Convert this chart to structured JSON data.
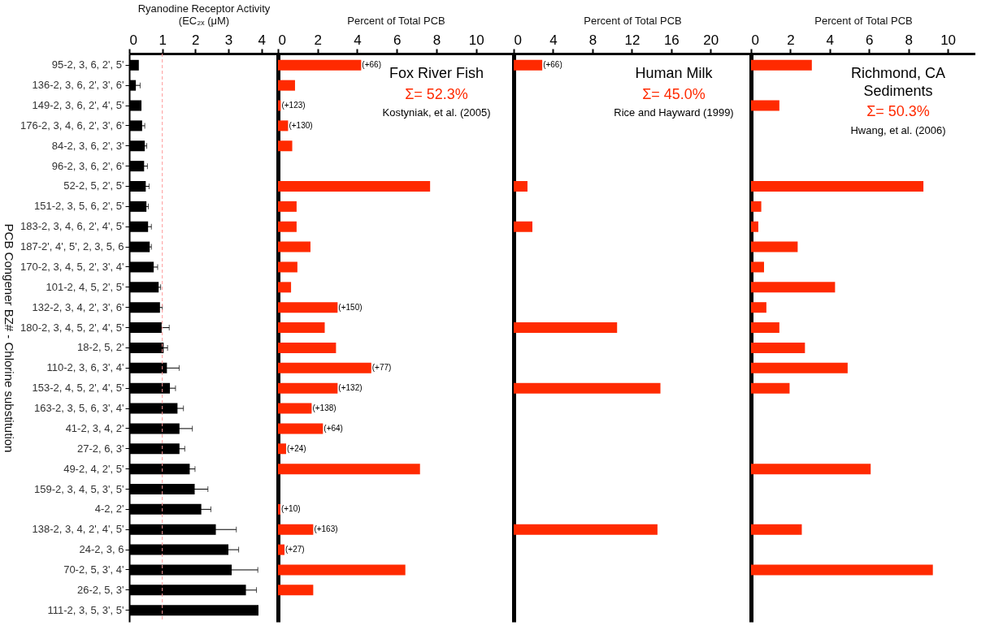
{
  "chart_data": [
    {
      "type": "bar",
      "orientation": "horizontal",
      "xlabel": "Ryanodine Receptor Activity\n(EC₂ₓ  (μM)",
      "ylabel": "PCB Congener  BZ# - Chlorine substitution",
      "categories": [
        "95-2, 3, 6, 2', 5'",
        "136-2, 3, 6, 2', 3', 6'",
        "149-2, 3, 6, 2', 4', 5'",
        "176-2, 3, 4, 6, 2', 3', 6'",
        "84-2, 3, 6, 2', 3'",
        "96-2, 3, 6, 2', 6'",
        "52-2, 5, 2', 5'",
        "151-2, 3, 5, 6, 2', 5'",
        "183-2, 3, 4, 6, 2', 4', 5'",
        "187-2', 4', 5', 2, 3, 5, 6",
        "170-2, 3, 4, 5, 2', 3', 4'",
        "101-2, 4, 5, 2', 5'",
        "132-2, 3, 4, 2', 3', 6'",
        "180-2, 3, 4, 5, 2', 4', 5'",
        "18-2, 5, 2'",
        "110-2, 3, 6, 3', 4'",
        "153-2, 4, 5, 2', 4', 5'",
        "163-2, 3, 5, 6, 3', 4'",
        "41-2, 3, 4, 2'",
        "27-2, 6, 3'",
        "49-2, 4, 2', 5'",
        "159-2, 3, 4, 5, 3', 5'",
        "4-2, 2'",
        "138-2, 3, 4, 2', 4', 5'",
        "24-2, 3, 6",
        "70-2, 5, 3', 4'",
        "26-2, 5, 3'",
        "111-2, 3, 5, 3', 5'"
      ],
      "values": [
        0.29,
        0.2,
        0.37,
        0.39,
        0.47,
        0.45,
        0.5,
        0.52,
        0.57,
        0.62,
        0.74,
        0.89,
        0.93,
        0.98,
        1.04,
        1.14,
        1.23,
        1.46,
        1.52,
        1.52,
        1.83,
        1.98,
        2.18,
        2.62,
        3.0,
        3.1,
        3.53,
        3.91
      ],
      "errors": [
        null,
        0.13,
        null,
        0.08,
        0.06,
        0.1,
        0.1,
        0.06,
        0.1,
        0.05,
        0.12,
        0.06,
        0.07,
        0.23,
        0.12,
        0.37,
        0.17,
        0.18,
        0.39,
        0.16,
        0.16,
        0.4,
        0.29,
        0.62,
        0.31,
        0.79,
        0.32,
        null
      ],
      "color": "#000000",
      "xlim": [
        0,
        4.5
      ],
      "xticks": [
        0,
        1,
        2,
        3,
        4
      ],
      "ref_lines": [
        {
          "axis": "x",
          "value": 1,
          "color": "#ff9999",
          "line_style": "dashed"
        }
      ]
    },
    {
      "type": "bar",
      "orientation": "horizontal",
      "xlabel": "Percent of Total PCB",
      "tick_labels": "x",
      "categories": [
        "95-2, 3, 6, 2', 5'",
        "136-2, 3, 6, 2', 3', 6'",
        "149-2, 3, 6, 2', 4', 5'",
        "176-2, 3, 4, 6, 2', 3', 6'",
        "84-2, 3, 6, 2', 3'",
        "96-2, 3, 6, 2', 6'",
        "52-2, 5, 2', 5'",
        "151-2, 3, 5, 6, 2', 5'",
        "183-2, 3, 4, 6, 2', 4', 5'",
        "187-2', 4', 5', 2, 3, 5, 6",
        "170-2, 3, 4, 5, 2', 3', 4'",
        "101-2, 4, 5, 2', 5'",
        "132-2, 3, 4, 2', 3', 6'",
        "180-2, 3, 4, 5, 2', 4', 5'",
        "18-2, 5, 2'",
        "110-2, 3, 6, 3', 4'",
        "153-2, 4, 5, 2', 4', 5'",
        "163-2, 3, 5, 6, 3', 4'",
        "41-2, 3, 4, 2'",
        "27-2, 6, 3'",
        "49-2, 4, 2', 5'",
        "159-2, 3, 4, 5, 3', 5'",
        "4-2, 2'",
        "138-2, 3, 4, 2', 4', 5'",
        "24-2, 3, 6",
        "70-2, 5, 3', 4'",
        "26-2, 5, 3'",
        "111-2, 3, 5, 3', 5'"
      ],
      "values": [
        4.2,
        0.86,
        0.14,
        0.51,
        0.72,
        null,
        7.68,
        0.94,
        0.94,
        1.64,
        0.98,
        0.66,
        3.01,
        2.36,
        2.93,
        4.71,
        3.01,
        1.7,
        2.27,
        0.41,
        7.17,
        null,
        0.12,
        1.78,
        0.33,
        6.43,
        1.78,
        null
      ],
      "color": "#ff2a00",
      "xlim": [
        0,
        11.9
      ],
      "xticks": [
        0,
        2,
        4,
        6,
        8,
        10
      ],
      "annotations": [
        "Fox River Fish",
        "Σ= 52.3%",
        "Kostyniak, et al. (2005)",
        {
          "text": "(+66)",
          "x": 4.2,
          "y": "95-2, 3, 6, 2', 5'"
        },
        {
          "text": "(+123)",
          "x": 0.14,
          "y": "149-2, 3, 6, 2', 4', 5'"
        },
        {
          "text": "(+130)",
          "x": 0.51,
          "y": "176-2, 3, 4, 6, 2', 3', 6'"
        },
        {
          "text": "(+150)",
          "x": 3.01,
          "y": "132-2, 3, 4, 2', 3', 6'"
        },
        {
          "text": "(+77)",
          "x": 4.71,
          "y": "110-2, 3, 6, 3', 4'"
        },
        {
          "text": "(+132)",
          "x": 3.01,
          "y": "153-2, 4, 5, 2', 4', 5'"
        },
        {
          "text": "(+138)",
          "x": 1.7,
          "y": "163-2, 3, 5, 6, 3', 4'"
        },
        {
          "text": "(+64)",
          "x": 2.27,
          "y": "41-2, 3, 4, 2'"
        },
        {
          "text": "(+24)",
          "x": 0.41,
          "y": "27-2, 6, 3'"
        },
        {
          "text": "(+10)",
          "x": 0.12,
          "y": "4-2, 2'"
        },
        {
          "text": "(+163)",
          "x": 1.78,
          "y": "138-2, 3, 4, 2', 4', 5'"
        },
        {
          "text": "(+27)",
          "x": 0.33,
          "y": "24-2, 3, 6"
        }
      ]
    },
    {
      "type": "bar",
      "orientation": "horizontal",
      "xlabel": "Percent of Total PCB",
      "tick_labels": "x",
      "categories": [
        "95-2, 3, 6, 2', 5'",
        "136-2, 3, 6, 2', 3', 6'",
        "149-2, 3, 6, 2', 4', 5'",
        "176-2, 3, 4, 6, 2', 3', 6'",
        "84-2, 3, 6, 2', 3'",
        "96-2, 3, 6, 2', 6'",
        "52-2, 5, 2', 5'",
        "151-2, 3, 5, 6, 2', 5'",
        "183-2, 3, 4, 6, 2', 4', 5'",
        "187-2', 4', 5', 2, 3, 5, 6",
        "170-2, 3, 4, 5, 2', 3', 4'",
        "101-2, 4, 5, 2', 5'",
        "132-2, 3, 4, 2', 3', 6'",
        "180-2, 3, 4, 5, 2', 4', 5'",
        "18-2, 5, 2'",
        "110-2, 3, 6, 3', 4'",
        "153-2, 4, 5, 2', 4', 5'",
        "163-2, 3, 5, 6, 3', 4'",
        "41-2, 3, 4, 2'",
        "27-2, 6, 3'",
        "49-2, 4, 2', 5'",
        "159-2, 3, 4, 5, 3', 5'",
        "4-2, 2'",
        "138-2, 3, 4, 2', 4', 5'",
        "24-2, 3, 6",
        "70-2, 5, 3', 4'",
        "26-2, 5, 3'",
        "111-2, 3, 5, 3', 5'"
      ],
      "values": [
        2.9,
        null,
        null,
        null,
        null,
        null,
        1.4,
        null,
        1.9,
        null,
        null,
        null,
        null,
        10.5,
        null,
        null,
        14.9,
        null,
        null,
        null,
        null,
        null,
        null,
        14.6,
        null,
        null,
        null,
        null
      ],
      "color": "#ff2a00",
      "xlim": [
        0,
        24.1
      ],
      "xticks": [
        0,
        4,
        8,
        12,
        16,
        20
      ],
      "annotations": [
        "Human Milk",
        "Σ= 45.0%",
        "Rice and Hayward (1999)",
        {
          "text": "(+66)",
          "x": 2.9,
          "y": "95-2, 3, 6, 2', 5'"
        }
      ]
    },
    {
      "type": "bar",
      "orientation": "horizontal",
      "xlabel": "Percent of Total PCB",
      "tick_labels": "x",
      "categories": [
        "95-2, 3, 6, 2', 5'",
        "136-2, 3, 6, 2', 3', 6'",
        "149-2, 3, 6, 2', 4', 5'",
        "176-2, 3, 4, 6, 2', 3', 6'",
        "84-2, 3, 6, 2', 3'",
        "96-2, 3, 6, 2', 6'",
        "52-2, 5, 2', 5'",
        "151-2, 3, 5, 6, 2', 5'",
        "183-2, 3, 4, 6, 2', 4', 5'",
        "187-2', 4', 5', 2, 3, 5, 6",
        "170-2, 3, 4, 5, 2', 3', 4'",
        "101-2, 4, 5, 2', 5'",
        "132-2, 3, 4, 2', 3', 6'",
        "180-2, 3, 4, 5, 2', 4', 5'",
        "18-2, 5, 2'",
        "110-2, 3, 6, 3', 4'",
        "153-2, 4, 5, 2', 4', 5'",
        "163-2, 3, 5, 6, 3', 4'",
        "41-2, 3, 4, 2'",
        "27-2, 6, 3'",
        "49-2, 4, 2', 5'",
        "159-2, 3, 4, 5, 3', 5'",
        "4-2, 2'",
        "138-2, 3, 4, 2', 4', 5'",
        "24-2, 3, 6",
        "70-2, 5, 3', 4'",
        "26-2, 5, 3'",
        "111-2, 3, 5, 3', 5'"
      ],
      "values": [
        3.09,
        null,
        1.44,
        null,
        null,
        null,
        8.76,
        0.52,
        0.37,
        2.37,
        0.66,
        4.27,
        0.78,
        1.44,
        2.74,
        4.91,
        1.96,
        null,
        null,
        null,
        6.08,
        null,
        null,
        2.58,
        null,
        9.24,
        null,
        null
      ],
      "color": "#ff2a00",
      "xlim": [
        0,
        11.4
      ],
      "xticks": [
        0,
        2,
        4,
        6,
        8,
        10
      ],
      "annotations": [
        "Richmond, CA\nSediments",
        "Σ= 50.3%",
        "Hwang, et al. (2006)"
      ]
    }
  ]
}
